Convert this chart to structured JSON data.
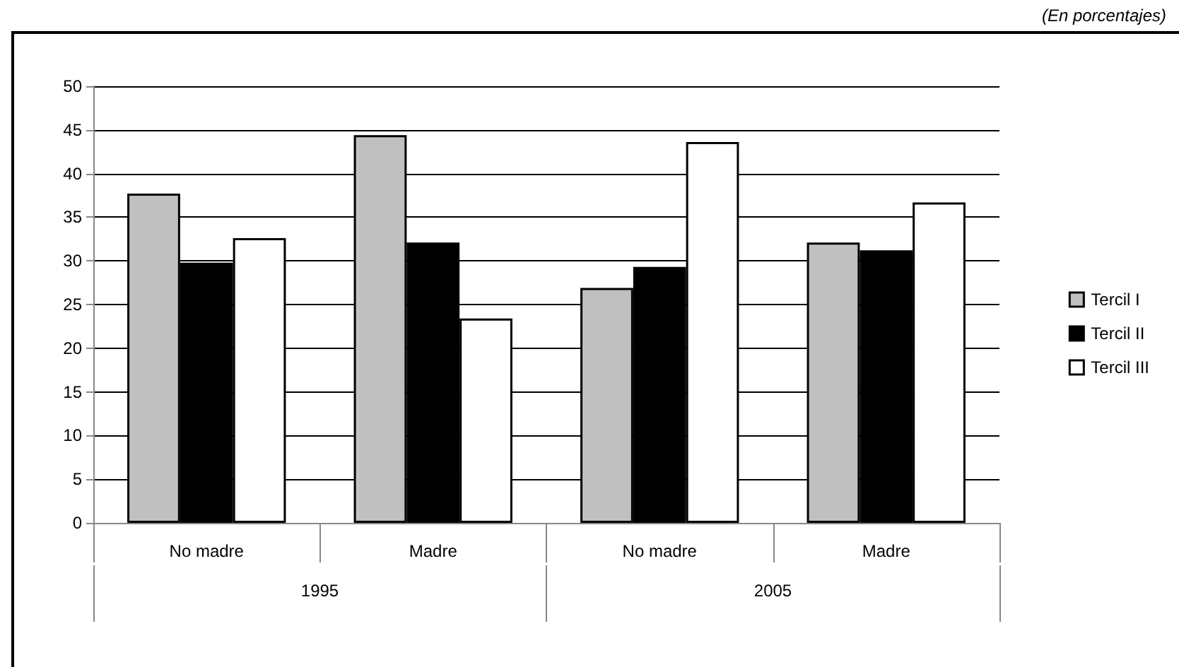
{
  "chart_data": {
    "type": "bar",
    "subtitle": "(En porcentajes)",
    "categories": [
      "No madre",
      "Madre",
      "No madre",
      "Madre"
    ],
    "annotations": [
      "1995",
      "2005"
    ],
    "series": [
      {
        "name": "Tercil I",
        "color": "#c0c0c0",
        "values": [
          37.7,
          44.4,
          26.9,
          32.1
        ]
      },
      {
        "name": "Tercil II",
        "color": "#000000",
        "values": [
          29.8,
          32.1,
          29.3,
          31.2
        ]
      },
      {
        "name": "Tercil III",
        "color": "#ffffff",
        "values": [
          32.6,
          23.4,
          43.6,
          36.7
        ]
      }
    ],
    "ylim": [
      0,
      50
    ],
    "yticks": [
      0,
      5,
      10,
      15,
      20,
      25,
      30,
      35,
      40,
      45,
      50
    ],
    "grid": "y",
    "legend": "right"
  }
}
